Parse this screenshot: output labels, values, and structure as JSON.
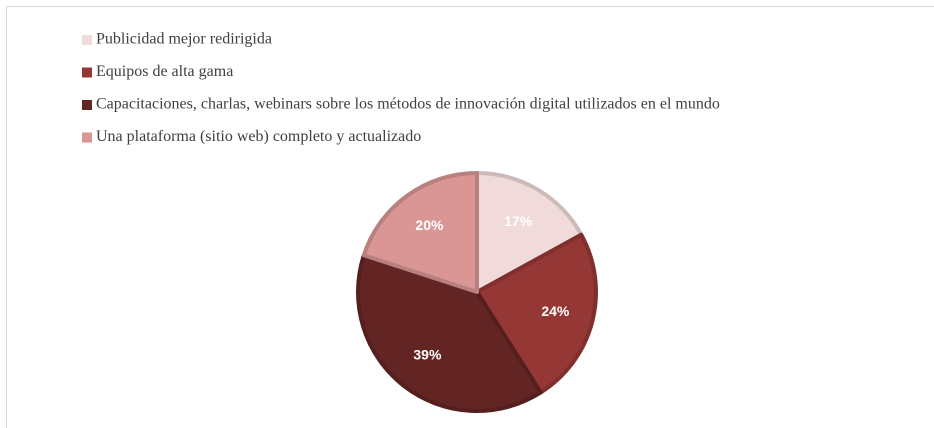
{
  "chart_data": {
    "type": "pie",
    "categories": [
      "Publicidad mejor redirigida",
      "Equipos de alta gama",
      "Capacitaciones, charlas, webinars sobre los métodos de innovación digital utilizados en el mundo",
      "Una plataforma (sitio web) completo y actualizado"
    ],
    "values": [
      17,
      24,
      39,
      20
    ],
    "value_labels": [
      "17%",
      "24%",
      "39%",
      "20%"
    ],
    "colors": [
      "#f0dada",
      "#953735",
      "#632523",
      "#d99694"
    ],
    "legend": "top-left"
  }
}
